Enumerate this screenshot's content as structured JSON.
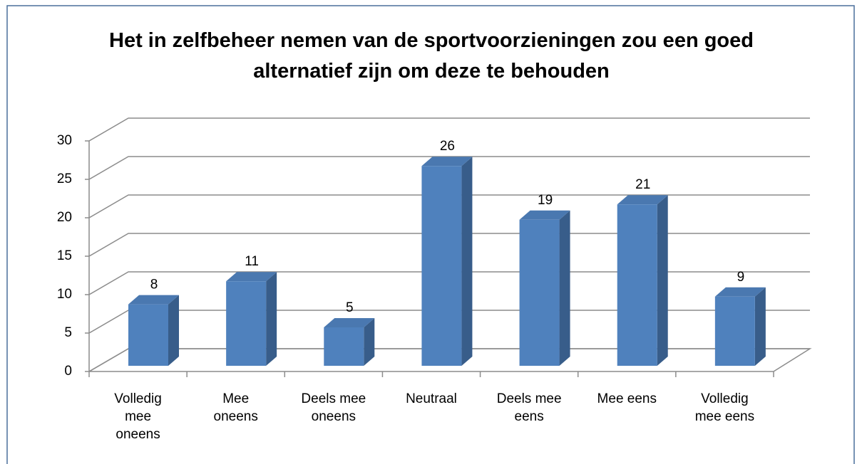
{
  "chart_data": {
    "type": "bar3d",
    "title": "Het in zelfbeheer nemen van de sportvoorzieningen zou een goed alternatief zijn om deze te behouden",
    "categories": [
      "Volledig mee oneens",
      "Mee oneens",
      "Deels mee oneens",
      "Neutraal",
      "Deels mee eens",
      "Mee eens",
      "Volledig mee eens"
    ],
    "values": [
      8,
      11,
      5,
      26,
      19,
      21,
      9
    ],
    "color": "#4f81bd",
    "ylim": [
      0,
      30
    ],
    "yticks": [
      0,
      5,
      10,
      15,
      20,
      25,
      30
    ],
    "grid": true
  }
}
